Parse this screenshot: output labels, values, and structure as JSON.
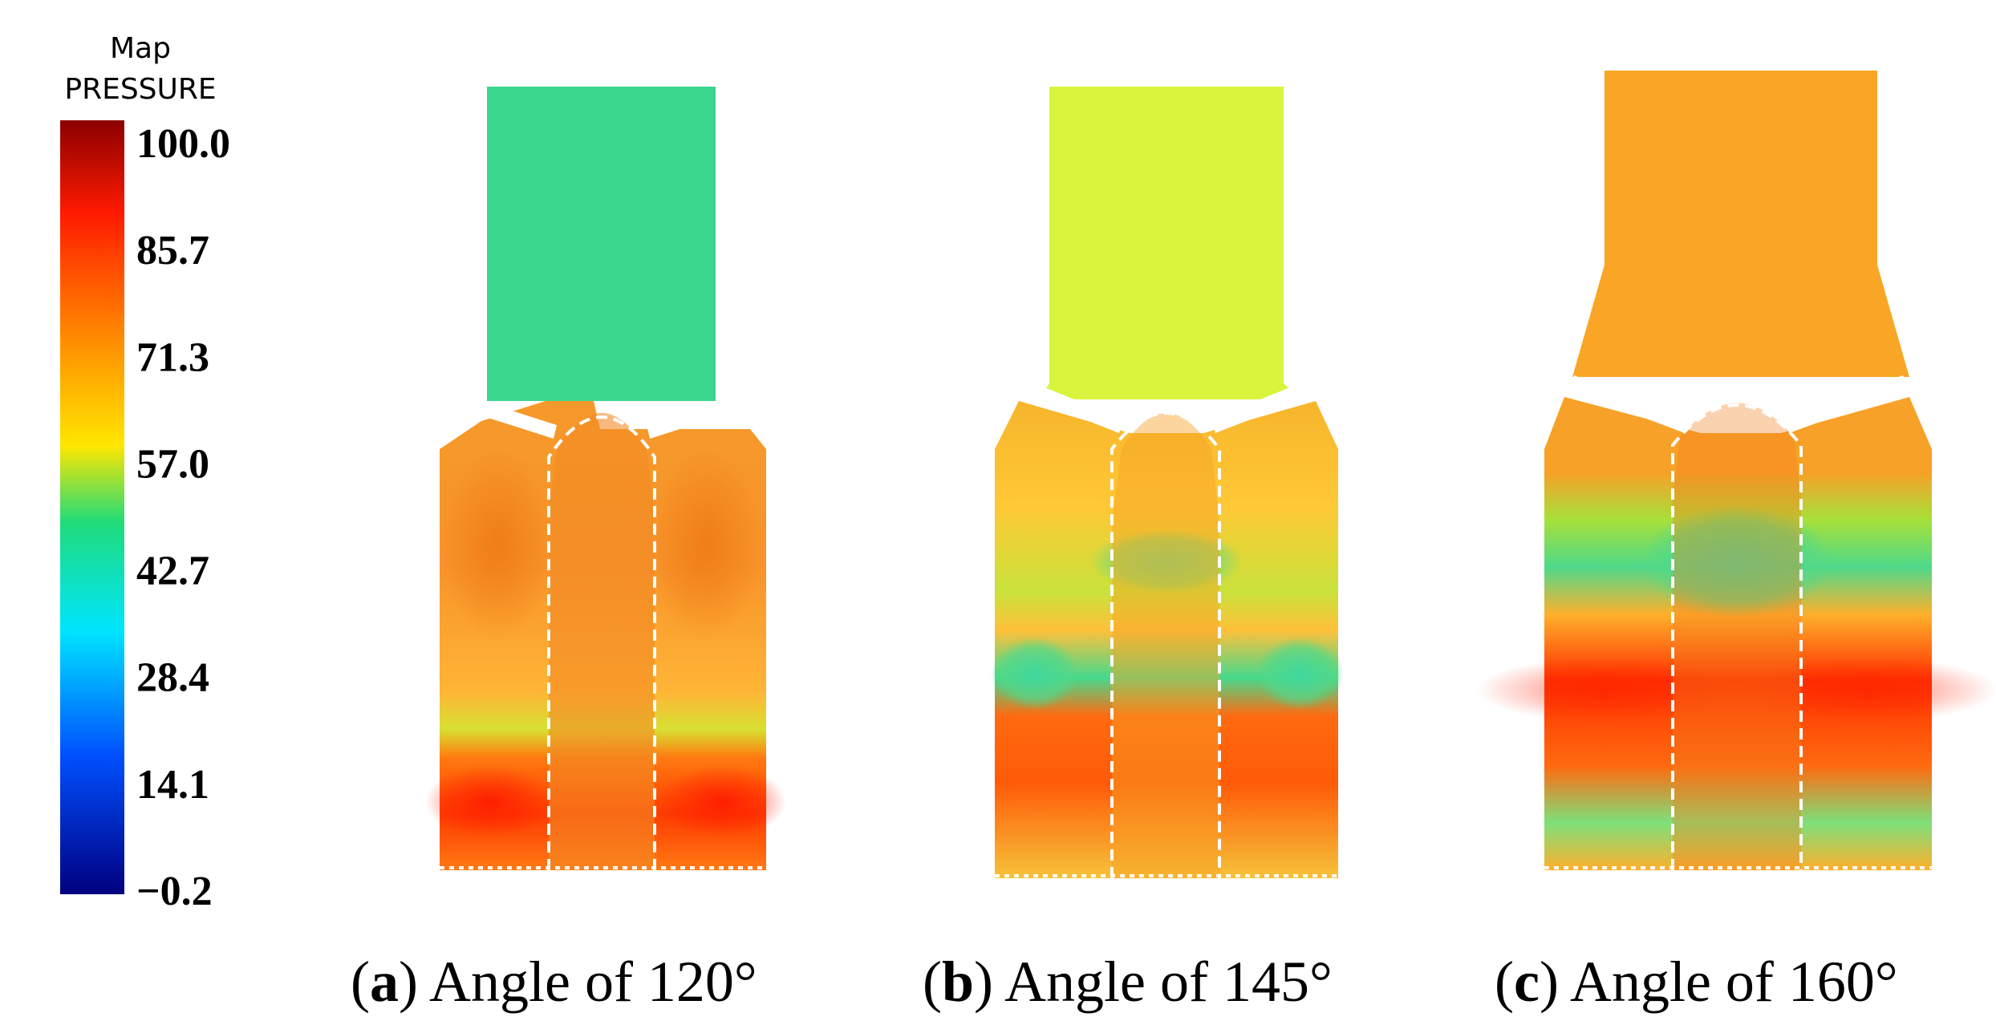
{
  "legend": {
    "title_line1": "Map",
    "title_line2": "PRESSURE",
    "ticks": [
      "100.0",
      "85.7",
      "71.3",
      "57.0",
      "42.7",
      "28.4",
      "14.1",
      "−0.2"
    ],
    "colors": [
      "#8b0000",
      "#ff1a00",
      "#ff8a00",
      "#ffe600",
      "#1fdc7a",
      "#00e5ff",
      "#0050ff",
      "#000080"
    ]
  },
  "panels": [
    {
      "letter": "a",
      "text": "Angle of 120°",
      "colors": {
        "top": "#3ddc7a",
        "body": "#f7931e",
        "hot": "#ff3b00",
        "mid": "#ffad2a",
        "cool": "#c9e21f"
      }
    },
    {
      "letter": "b",
      "text": "Angle of 145°",
      "colors": {
        "top": "#d8f53a",
        "body": "#f7a323",
        "hot": "#ff4a00",
        "mid": "#ffc52a",
        "cool": "#3ed989"
      }
    },
    {
      "letter": "c",
      "text": "Angle of 160°",
      "colors": {
        "top": "#f9a825",
        "body": "#f7931e",
        "hot": "#ff2e00",
        "mid": "#ffb52a",
        "cool": "#3ed989"
      }
    }
  ]
}
